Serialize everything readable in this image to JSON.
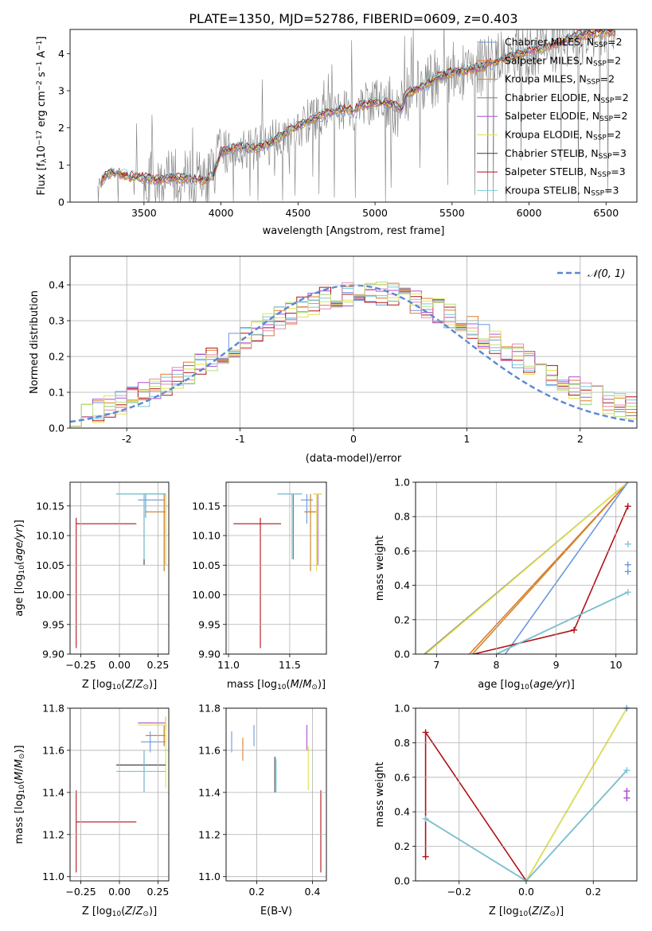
{
  "figure": {
    "title": "PLATE=1350, MJD=52786, FIBERID=0609, z=0.403"
  },
  "colors": {
    "data": "#7f7f7f",
    "gauss": "#5b86d6",
    "series": [
      "#6a97e0",
      "#e07a2a",
      "#c9892e",
      "#7c7c7c",
      "#b04fd0",
      "#e3e34a",
      "#3c3c3c",
      "#b01218",
      "#78c8d8"
    ],
    "hist": [
      "#6a97e0",
      "#e07a2a",
      "#b04fd0",
      "#e3e34a",
      "#b01218",
      "#78c8d8",
      "#e58ab0",
      "#b8e07a"
    ]
  },
  "chart_data": [
    {
      "id": "spectrum",
      "type": "line",
      "title": "PLATE=1350, MJD=52786, FIBERID=0609, z=0.403",
      "xlabel": "wavelength [Angstrom, rest frame]",
      "ylabel": "Flux [f",
      "ylabel_sub": "λ",
      "ylabel_rest": "10",
      "ylabel_exp": "−17",
      "ylabel_unit": " erg cm",
      "ylabel_exp2": "−2",
      "ylabel_unit2": " s",
      "ylabel_exp3": "−1",
      "ylabel_unit3": " A",
      "ylabel_exp4": "−1",
      "ylabel_close": "]",
      "xlim": [
        3020,
        6700
      ],
      "ylim": [
        0,
        4.65
      ],
      "xticks": [
        3500,
        4000,
        4500,
        5000,
        5500,
        6000,
        6500
      ],
      "yticks": [
        0,
        1,
        2,
        3,
        4
      ],
      "model_anchor_x": [
        3220,
        3260,
        3300,
        3400,
        3500,
        3600,
        3700,
        3800,
        3900,
        3950,
        4000,
        4050,
        4100,
        4200,
        4300,
        4400,
        4500,
        4600,
        4700,
        4800,
        4862,
        4900,
        5000,
        5100,
        5175,
        5200,
        5300,
        5400,
        5500,
        5600,
        5700,
        5800,
        5900,
        6000,
        6100,
        6200,
        6300,
        6400,
        6500,
        6560
      ],
      "model_anchor_y": [
        0.55,
        0.75,
        0.8,
        0.7,
        0.65,
        0.6,
        0.65,
        0.65,
        0.6,
        0.75,
        1.35,
        1.4,
        1.5,
        1.45,
        1.55,
        1.8,
        2.05,
        2.25,
        2.4,
        2.5,
        2.45,
        2.6,
        2.7,
        2.65,
        2.5,
        2.9,
        3.1,
        3.35,
        3.5,
        3.55,
        3.65,
        3.8,
        3.95,
        4.05,
        4.15,
        4.3,
        4.45,
        4.55,
        4.6,
        4.6
      ],
      "legend": [
        {
          "main": "Chabrier MILES, N",
          "sub": "SSP",
          "tail": "=2"
        },
        {
          "main": "Salpeter MILES, N",
          "sub": "SSP",
          "tail": "=2"
        },
        {
          "main": "Kroupa MILES, N",
          "sub": "SSP",
          "tail": "=2"
        },
        {
          "main": "Chabrier ELODIE, N",
          "sub": "SSP",
          "tail": "=2"
        },
        {
          "main": "Salpeter ELODIE, N",
          "sub": "SSP",
          "tail": "=2"
        },
        {
          "main": "Kroupa ELODIE, N",
          "sub": "SSP",
          "tail": "=2"
        },
        {
          "main": "Chabrier STELIB, N",
          "sub": "SSP",
          "tail": "=3"
        },
        {
          "main": "Salpeter STELIB, N",
          "sub": "SSP",
          "tail": "=3"
        },
        {
          "main": "Kroupa STELIB, N",
          "sub": "SSP",
          "tail": "=3"
        }
      ]
    },
    {
      "id": "residuals",
      "type": "line",
      "xlabel": "(data-model)/error",
      "ylabel": "Normed distribution",
      "xlim": [
        -2.5,
        2.5
      ],
      "ylim": [
        0,
        0.48
      ],
      "xticks": [
        -2,
        -1,
        0,
        1,
        2
      ],
      "yticks": [
        0.0,
        0.1,
        0.2,
        0.3,
        0.4
      ],
      "grid": true,
      "legend": [
        {
          "label": "𝒩(0, 1)",
          "style": "dashed"
        }
      ],
      "bin_width": 0.1,
      "gauss": {
        "mean": 0,
        "sigma": 1
      },
      "hist_shift": 0.12,
      "hist_scale": 1.0
    },
    {
      "id": "age-vs-Z",
      "type": "scatter",
      "xlabel": "Z [log",
      "xlabel_sub": "10",
      "xlabel_rest": "(Z/Z",
      "xlabel_sun": "⊙",
      "xlabel_close": ")]",
      "ylabel": "age  [log",
      "ylabel_sub": "10",
      "ylabel_rest": "(age/yr)]",
      "xlim": [
        -0.32,
        0.32
      ],
      "ylim": [
        9.9,
        10.19
      ],
      "xticks": [
        -0.25,
        0.0,
        0.25
      ],
      "xticklabels": [
        "−0.25",
        "0.00",
        "0.25"
      ],
      "yticks": [
        9.9,
        9.95,
        10.0,
        10.05,
        10.1,
        10.15
      ],
      "yticklabels": [
        "9.90",
        "9.95",
        "10.00",
        "10.05",
        "10.10",
        "10.15"
      ],
      "grid": true,
      "points": [
        {
          "x": 0.17,
          "y": 10.16,
          "xlo": 0.12,
          "xhi": 0.29,
          "ylo": 10.13,
          "yhi": 10.17,
          "c": 0
        },
        {
          "x": 0.29,
          "y": 10.14,
          "xlo": 0.17,
          "xhi": 0.3,
          "ylo": 10.04,
          "yhi": 10.17,
          "c": 1
        },
        {
          "x": 0.29,
          "y": 10.14,
          "xlo": 0.17,
          "xhi": 0.3,
          "ylo": 10.04,
          "yhi": 10.17,
          "c": 2
        },
        {
          "x": 0.16,
          "y": 10.17,
          "xlo": -0.02,
          "xhi": 0.3,
          "ylo": 10.06,
          "yhi": 10.17,
          "c": 3
        },
        {
          "x": 0.3,
          "y": 10.17,
          "xlo": 0.16,
          "xhi": 0.3,
          "ylo": 10.05,
          "yhi": 10.17,
          "c": 4
        },
        {
          "x": 0.3,
          "y": 10.17,
          "xlo": 0.16,
          "xhi": 0.3,
          "ylo": 10.05,
          "yhi": 10.17,
          "c": 5
        },
        {
          "x": 0.16,
          "y": 10.17,
          "xlo": -0.02,
          "xhi": 0.3,
          "ylo": 10.05,
          "yhi": 10.17,
          "c": 6
        },
        {
          "x": -0.28,
          "y": 10.12,
          "xlo": -0.28,
          "xhi": 0.11,
          "ylo": 9.91,
          "yhi": 10.13,
          "c": 7
        },
        {
          "x": 0.16,
          "y": 10.17,
          "xlo": -0.02,
          "xhi": 0.3,
          "ylo": 10.06,
          "yhi": 10.17,
          "c": 8
        }
      ]
    },
    {
      "id": "age-vs-mass",
      "type": "scatter",
      "xlabel": "mass [log",
      "xlabel_sub": "10",
      "xlabel_rest": "(M/M",
      "xlabel_sun": "⊙",
      "xlabel_close": ")]",
      "xlim": [
        10.98,
        11.8
      ],
      "ylim": [
        9.9,
        10.19
      ],
      "xticks": [
        11.0,
        11.5
      ],
      "xticklabels": [
        "11.0",
        "11.5"
      ],
      "yticks": [
        9.9,
        9.95,
        10.0,
        10.05,
        10.1,
        10.15
      ],
      "yticklabels": [
        "9.90",
        "9.95",
        "10.00",
        "10.05",
        "10.10",
        "10.15"
      ],
      "grid": true,
      "points": [
        {
          "x": 11.64,
          "y": 10.16,
          "xlo": 11.59,
          "xhi": 11.69,
          "ylo": 10.12,
          "yhi": 10.17,
          "c": 0
        },
        {
          "x": 11.67,
          "y": 10.14,
          "xlo": 11.62,
          "xhi": 11.72,
          "ylo": 10.04,
          "yhi": 10.17,
          "c": 1
        },
        {
          "x": 11.67,
          "y": 10.14,
          "xlo": 11.62,
          "xhi": 11.72,
          "ylo": 10.04,
          "yhi": 10.17,
          "c": 2
        },
        {
          "x": 11.53,
          "y": 10.17,
          "xlo": 11.4,
          "xhi": 11.6,
          "ylo": 10.06,
          "yhi": 10.17,
          "c": 3
        },
        {
          "x": 11.73,
          "y": 10.17,
          "xlo": 11.7,
          "xhi": 11.76,
          "ylo": 10.05,
          "yhi": 10.17,
          "c": 4
        },
        {
          "x": 11.72,
          "y": 10.17,
          "xlo": 11.69,
          "xhi": 11.76,
          "ylo": 10.04,
          "yhi": 10.17,
          "c": 5
        },
        {
          "x": 11.52,
          "y": 10.17,
          "xlo": 11.4,
          "xhi": 11.6,
          "ylo": 10.06,
          "yhi": 10.17,
          "c": 6
        },
        {
          "x": 11.26,
          "y": 10.12,
          "xlo": 11.04,
          "xhi": 11.43,
          "ylo": 9.91,
          "yhi": 10.13,
          "c": 7
        },
        {
          "x": 11.52,
          "y": 10.17,
          "xlo": 11.4,
          "xhi": 11.6,
          "ylo": 10.06,
          "yhi": 10.17,
          "c": 8
        }
      ]
    },
    {
      "id": "weight-vs-age",
      "type": "line",
      "xlabel": "age  [log",
      "xlabel_sub": "10",
      "xlabel_rest": "(age/yr)]",
      "ylabel": "mass weight",
      "xlim": [
        6.65,
        10.35
      ],
      "ylim": [
        0,
        1
      ],
      "xticks": [
        7,
        8,
        9,
        10
      ],
      "yticks": [
        0.0,
        0.2,
        0.4,
        0.6,
        0.8,
        1.0
      ],
      "grid": true,
      "series": [
        {
          "c": 2,
          "x": [
            7.6,
            10.2
          ],
          "y": [
            0.0,
            1.0
          ]
        },
        {
          "c": 1,
          "x": [
            7.55,
            10.2
          ],
          "y": [
            0.0,
            1.0
          ]
        },
        {
          "c": 3,
          "x": [
            6.8,
            10.2
          ],
          "y": [
            0.0,
            1.0
          ]
        },
        {
          "c": 5,
          "x": [
            6.82,
            10.2
          ],
          "y": [
            0.0,
            1.0
          ]
        },
        {
          "c": 9,
          "x": [
            8.15,
            10.2
          ],
          "y": [
            0.0,
            1.0
          ]
        },
        {
          "c": 7,
          "x": [
            7.62,
            9.3,
            10.2
          ],
          "y": [
            0.0,
            0.14,
            0.86
          ]
        },
        {
          "c": 6,
          "x": [
            8.0,
            10.2
          ],
          "y": [
            0.0,
            0.36
          ]
        },
        {
          "c": 8,
          "x": [
            8.0,
            10.2
          ],
          "y": [
            0.0,
            0.36
          ]
        }
      ],
      "markers": [
        {
          "c": 7,
          "x": 9.3,
          "y": 0.14
        },
        {
          "c": 7,
          "x": 10.2,
          "y": 0.86
        },
        {
          "c": 8,
          "x": 10.2,
          "y": 0.64
        },
        {
          "c": 8,
          "x": 10.2,
          "y": 0.36
        },
        {
          "c": 0,
          "x": 10.2,
          "y": 0.52
        },
        {
          "c": 0,
          "x": 10.2,
          "y": 0.48
        }
      ]
    },
    {
      "id": "mass-vs-Z",
      "type": "scatter",
      "xlabel": "Z [log",
      "xlabel_sub": "10",
      "xlabel_rest": "(Z/Z",
      "xlabel_sun": "⊙",
      "xlabel_close": ")]",
      "ylabel": "mass [log",
      "ylabel_sub": "10",
      "ylabel_rest": "(M/M",
      "ylabel_sun": "⊙",
      "ylabel_close": ")]",
      "xlim": [
        -0.32,
        0.32
      ],
      "ylim": [
        10.98,
        11.8
      ],
      "xticks": [
        -0.25,
        0.0,
        0.25
      ],
      "xticklabels": [
        "−0.25",
        "0.00",
        "0.25"
      ],
      "yticks": [
        11.0,
        11.2,
        11.4,
        11.6,
        11.8
      ],
      "yticklabels": [
        "11.0",
        "11.2",
        "11.4",
        "11.6",
        "11.8"
      ],
      "grid": true,
      "points": [
        {
          "x": 0.2,
          "y": 11.64,
          "xlo": 0.14,
          "xhi": 0.3,
          "ylo": 11.59,
          "yhi": 11.69,
          "c": 0
        },
        {
          "x": 0.29,
          "y": 11.67,
          "xlo": 0.17,
          "xhi": 0.3,
          "ylo": 11.62,
          "yhi": 11.72,
          "c": 1
        },
        {
          "x": 0.29,
          "y": 11.67,
          "xlo": 0.17,
          "xhi": 0.3,
          "ylo": 11.62,
          "yhi": 11.72,
          "c": 2
        },
        {
          "x": 0.16,
          "y": 11.53,
          "xlo": -0.02,
          "xhi": 0.3,
          "ylo": 11.4,
          "yhi": 11.6,
          "c": 3
        },
        {
          "x": 0.3,
          "y": 11.73,
          "xlo": 0.12,
          "xhi": 0.3,
          "ylo": 11.7,
          "yhi": 11.76,
          "c": 4
        },
        {
          "x": 0.3,
          "y": 11.72,
          "xlo": 0.12,
          "xhi": 0.3,
          "ylo": 11.42,
          "yhi": 11.76,
          "c": 5
        },
        {
          "x": 0.16,
          "y": 11.53,
          "xlo": -0.02,
          "xhi": 0.3,
          "ylo": 11.4,
          "yhi": 11.6,
          "c": 6
        },
        {
          "x": -0.28,
          "y": 11.26,
          "xlo": -0.28,
          "xhi": 0.11,
          "ylo": 11.02,
          "yhi": 11.41,
          "c": 7
        },
        {
          "x": 0.16,
          "y": 11.5,
          "xlo": -0.02,
          "xhi": 0.3,
          "ylo": 11.4,
          "yhi": 11.6,
          "c": 8
        }
      ]
    },
    {
      "id": "mass-vs-EBV",
      "type": "scatter",
      "xlabel": "E(B-V)",
      "xlim": [
        0.09,
        0.45
      ],
      "ylim": [
        10.98,
        11.8
      ],
      "xticks": [
        0.2,
        0.4
      ],
      "xticklabels": [
        "0.2",
        "0.4"
      ],
      "yticks": [
        11.0,
        11.2,
        11.4,
        11.6,
        11.8
      ],
      "yticklabels": [
        "11.0",
        "11.2",
        "11.4",
        "11.6",
        "11.8"
      ],
      "grid": true,
      "points": [
        {
          "x": 0.11,
          "y": 11.64,
          "ylo": 11.59,
          "yhi": 11.69,
          "c": 0
        },
        {
          "x": 0.15,
          "y": 11.6,
          "ylo": 11.55,
          "yhi": 11.66,
          "c": 1
        },
        {
          "x": 0.19,
          "y": 11.67,
          "ylo": 11.62,
          "yhi": 11.72,
          "c": 9
        },
        {
          "x": 0.265,
          "y": 11.5,
          "ylo": 11.4,
          "yhi": 11.57,
          "c": 6
        },
        {
          "x": 0.27,
          "y": 11.5,
          "ylo": 11.4,
          "yhi": 11.56,
          "c": 8
        },
        {
          "x": 0.38,
          "y": 11.67,
          "ylo": 11.6,
          "yhi": 11.72,
          "c": 4
        },
        {
          "x": 0.385,
          "y": 11.52,
          "ylo": 11.41,
          "yhi": 11.62,
          "c": 5
        },
        {
          "x": 0.43,
          "y": 11.26,
          "ylo": 11.02,
          "yhi": 11.41,
          "c": 7
        }
      ]
    },
    {
      "id": "weight-vs-Z",
      "type": "line",
      "xlabel": "Z [log",
      "xlabel_sub": "10",
      "xlabel_rest": "(Z/Z",
      "xlabel_sun": "⊙",
      "xlabel_close": ")]",
      "ylabel": "mass weight",
      "xlim": [
        -0.33,
        0.33
      ],
      "ylim": [
        0,
        1
      ],
      "xticks": [
        -0.2,
        0.0,
        0.2
      ],
      "xticklabels": [
        "−0.2",
        "0.0",
        "0.2"
      ],
      "yticks": [
        0.0,
        0.2,
        0.4,
        0.6,
        0.8,
        1.0
      ],
      "grid": true,
      "series": [
        {
          "c": 3,
          "x": [
            0.0,
            0.3
          ],
          "y": [
            0.0,
            1.0
          ]
        },
        {
          "c": 5,
          "x": [
            0.0,
            0.3
          ],
          "y": [
            0.0,
            1.0
          ]
        },
        {
          "c": 7,
          "x": [
            -0.3,
            -0.3,
            0.0
          ],
          "y": [
            0.14,
            0.86,
            0.0
          ]
        },
        {
          "c": 6,
          "x": [
            -0.3,
            0.0,
            0.3
          ],
          "y": [
            0.36,
            0.0,
            0.64
          ]
        },
        {
          "c": 8,
          "x": [
            -0.3,
            0.0,
            0.3
          ],
          "y": [
            0.36,
            0.0,
            0.64
          ]
        }
      ],
      "markers": [
        {
          "c": 7,
          "x": -0.3,
          "y": 0.86
        },
        {
          "c": 7,
          "x": -0.3,
          "y": 0.14
        },
        {
          "c": 8,
          "x": -0.3,
          "y": 0.36
        },
        {
          "c": 8,
          "x": 0.3,
          "y": 0.64
        },
        {
          "c": 4,
          "x": 0.3,
          "y": 0.52
        },
        {
          "c": 4,
          "x": 0.3,
          "y": 0.48
        },
        {
          "c": 9,
          "x": 0.3,
          "y": 1.0
        }
      ],
      "vlines": [
        {
          "c": 9,
          "x": 0.3,
          "y0": 0.0,
          "y1": 1.0
        },
        {
          "c": 4,
          "x": 0.3,
          "y0": 0.48,
          "y1": 0.52
        }
      ]
    }
  ]
}
